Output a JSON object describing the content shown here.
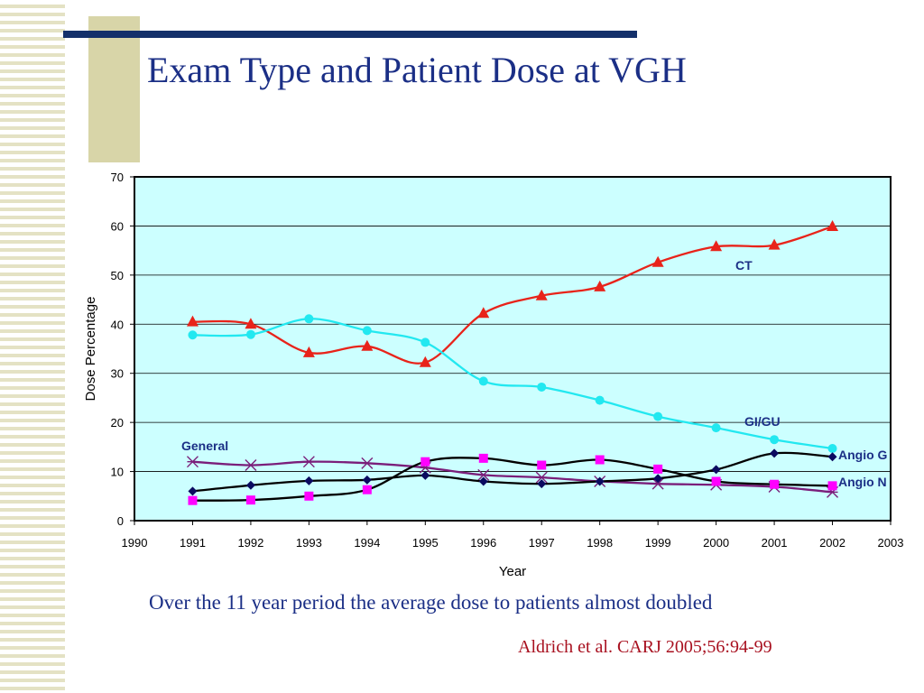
{
  "slide": {
    "title": "Exam Type and Patient Dose at VGH",
    "caption": "Over the 11 year period the average dose to patients almost doubled",
    "citation": "Aldrich et al. CARJ 2005;56:94-99"
  },
  "chart_data": {
    "type": "line",
    "title": "",
    "xlabel": "Year",
    "ylabel": "Dose Percentage",
    "xlim": [
      1990,
      2003
    ],
    "ylim": [
      0,
      70
    ],
    "xticks": [
      1990,
      1991,
      1992,
      1993,
      1994,
      1995,
      1996,
      1997,
      1998,
      1999,
      2000,
      2001,
      2002,
      2003
    ],
    "yticks": [
      0,
      10,
      20,
      30,
      40,
      50,
      60,
      70
    ],
    "grid": true,
    "plot_background": "#ccffff",
    "x": [
      1991,
      1992,
      1993,
      1994,
      1995,
      1996,
      1997,
      1998,
      1999,
      2000,
      2001,
      2002
    ],
    "series": [
      {
        "name": "CT",
        "color": "#e8231a",
        "marker": "triangle",
        "values": [
          40.5,
          40,
          34.2,
          35.5,
          32.2,
          42.2,
          45.8,
          47.6,
          52.6,
          55.8,
          56.1,
          59.9
        ]
      },
      {
        "name": "GI/GU",
        "color": "#22e8f0",
        "marker": "circle",
        "values": [
          37.8,
          37.9,
          41.1,
          38.7,
          36.3,
          28.4,
          27.2,
          24.5,
          21.2,
          18.9,
          16.5,
          14.7
        ]
      },
      {
        "name": "General",
        "color": "#7a1e7a",
        "marker": "asterisk",
        "values": [
          12,
          11.3,
          12,
          11.7,
          10.8,
          9.3,
          8.8,
          8,
          7.5,
          7.3,
          6.9,
          5.8
        ]
      },
      {
        "name": "Angio G",
        "color": "#0a0a60",
        "marker": "diamond",
        "values": [
          6,
          7.2,
          8.1,
          8.3,
          9.2,
          8,
          7.5,
          8,
          8.6,
          10.4,
          13.7,
          13
        ]
      },
      {
        "name": "Angio N",
        "color": "#ff00ff",
        "marker": "square",
        "values": [
          4.1,
          4.2,
          5,
          6.3,
          12,
          12.7,
          11.3,
          12.4,
          10.5,
          8,
          7.4,
          7.1
        ]
      }
    ],
    "labels": [
      {
        "series": "CT",
        "text": "CT",
        "color": "#1b2f86"
      },
      {
        "series": "GI/GU",
        "text": "GI/GU",
        "color": "#1b2f86"
      },
      {
        "series": "General",
        "text": "General",
        "color": "#1b2f86"
      },
      {
        "series": "Angio G",
        "text": "Angio G",
        "color": "#1b2f86"
      },
      {
        "series": "Angio N",
        "text": "Angio N",
        "color": "#1b2f86"
      }
    ]
  }
}
